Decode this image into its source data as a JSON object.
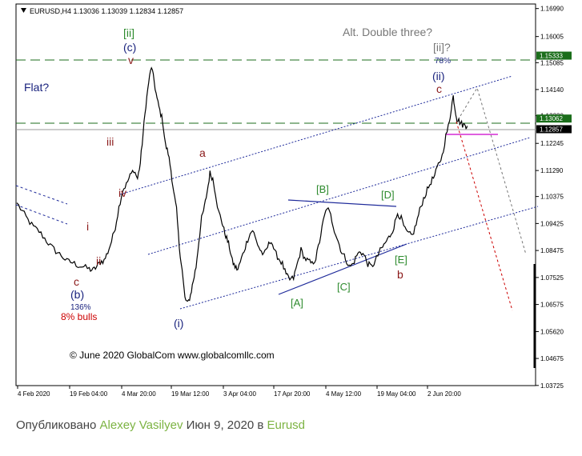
{
  "chart_data": {
    "type": "line",
    "symbol_header": "EURUSD,H4  1.13036 1.13039 1.12834 1.12857",
    "x_ticks": [
      "4 Feb 2020",
      "19 Feb 04:00",
      "4 Mar 20:00",
      "19 Mar 12:00",
      "3 Apr 04:00",
      "17 Apr 20:00",
      "4 May 12:00",
      "19 May 04:00",
      "2 Jun 20:00"
    ],
    "y_ticks": [
      "1.16990",
      "1.16005",
      "1.15085",
      "1.14140",
      "1.13220",
      "1.12245",
      "1.11290",
      "1.10375",
      "1.09425",
      "1.08475",
      "1.07525",
      "1.06575",
      "1.05620",
      "1.04675",
      "1.03725"
    ],
    "ylim": [
      1.0372,
      1.1715
    ],
    "price_labels": [
      {
        "text": "1.15333",
        "value": 1.15333
      },
      {
        "text": "1.13062",
        "value": 1.13062
      },
      {
        "text": "1.12857",
        "value": 1.12857
      }
    ],
    "series": [
      {
        "values": [
          [
            0,
            1.1015
          ],
          [
            6,
            1.0985
          ],
          [
            12,
            1.0955
          ],
          [
            18,
            1.093
          ],
          [
            24,
            1.0915
          ],
          [
            30,
            1.089
          ],
          [
            36,
            1.0865
          ],
          [
            42,
            1.0845
          ],
          [
            48,
            1.083
          ],
          [
            54,
            1.081
          ],
          [
            60,
            1.0805
          ],
          [
            66,
            1.0795
          ],
          [
            72,
            1.079
          ],
          [
            78,
            1.0782
          ],
          [
            82,
            1.0778
          ],
          [
            86,
            1.079
          ],
          [
            90,
            1.0808
          ],
          [
            94,
            1.0812
          ],
          [
            98,
            1.0842
          ],
          [
            102,
            1.088
          ],
          [
            106,
            1.093
          ],
          [
            110,
            1.1
          ],
          [
            114,
            1.106
          ],
          [
            118,
            1.108
          ],
          [
            122,
            1.111
          ],
          [
            126,
            1.1132
          ],
          [
            130,
            1.11
          ],
          [
            133,
            1.1155
          ],
          [
            136,
            1.126
          ],
          [
            139,
            1.136
          ],
          [
            142,
            1.144
          ],
          [
            145,
            1.1495
          ],
          [
            148,
            1.144
          ],
          [
            151,
            1.138
          ],
          [
            154,
            1.134
          ],
          [
            157,
            1.1305
          ],
          [
            160,
            1.122
          ],
          [
            163,
            1.119
          ],
          [
            166,
            1.113
          ],
          [
            169,
            1.105
          ],
          [
            172,
            1.099
          ],
          [
            175,
            1.086
          ],
          [
            178,
            1.078
          ],
          [
            181,
            1.068
          ],
          [
            184,
            1.066
          ],
          [
            187,
            1.069
          ],
          [
            190,
            1.074
          ],
          [
            193,
            1.079
          ],
          [
            196,
            1.088
          ],
          [
            199,
            1.096
          ],
          [
            202,
            1.1
          ],
          [
            205,
            1.1055
          ],
          [
            208,
            1.112
          ],
          [
            211,
            1.11
          ],
          [
            214,
            1.105
          ],
          [
            217,
            1.0985
          ],
          [
            220,
            1.096
          ],
          [
            223,
            1.092
          ],
          [
            226,
            1.089
          ],
          [
            229,
            1.086
          ],
          [
            232,
            1.081
          ],
          [
            235,
            1.079
          ],
          [
            238,
            1.078
          ],
          [
            242,
            1.082
          ],
          [
            246,
            1.086
          ],
          [
            250,
            1.09
          ],
          [
            254,
            1.092
          ],
          [
            258,
            1.088
          ],
          [
            262,
            1.085
          ],
          [
            266,
            1.083
          ],
          [
            270,
            1.086
          ],
          [
            274,
            1.0885
          ],
          [
            278,
            1.084
          ],
          [
            282,
            1.082
          ],
          [
            286,
            1.08
          ],
          [
            290,
            1.076
          ],
          [
            294,
            1.0745
          ],
          [
            298,
            1.075
          ],
          [
            302,
            1.08
          ],
          [
            306,
            1.085
          ],
          [
            310,
            1.082
          ],
          [
            314,
            1.081
          ],
          [
            318,
            1.08
          ],
          [
            322,
            1.082
          ],
          [
            326,
            1.088
          ],
          [
            330,
            1.095
          ],
          [
            334,
            1.1
          ],
          [
            338,
            1.097
          ],
          [
            342,
            1.092
          ],
          [
            346,
            1.088
          ],
          [
            350,
            1.084
          ],
          [
            354,
            1.082
          ],
          [
            358,
            1.079
          ],
          [
            362,
            1.08
          ],
          [
            366,
            1.083
          ],
          [
            370,
            1.0845
          ],
          [
            374,
            1.083
          ],
          [
            378,
            1.08
          ],
          [
            382,
            1.079
          ],
          [
            386,
            1.081
          ],
          [
            390,
            1.084
          ],
          [
            394,
            1.086
          ],
          [
            398,
            1.088
          ],
          [
            402,
            1.09
          ],
          [
            406,
            1.093
          ],
          [
            410,
            1.098
          ],
          [
            414,
            1.096
          ],
          [
            418,
            1.092
          ],
          [
            422,
            1.0905
          ],
          [
            426,
            1.09
          ],
          [
            430,
            1.094
          ],
          [
            434,
            1.099
          ],
          [
            438,
            1.103
          ],
          [
            442,
            1.106
          ],
          [
            446,
            1.109
          ],
          [
            450,
            1.111
          ],
          [
            454,
            1.115
          ],
          [
            458,
            1.118
          ],
          [
            462,
            1.125
          ],
          [
            466,
            1.13
          ],
          [
            468,
            1.1355
          ],
          [
            470,
            1.139
          ],
          [
            472,
            1.1345
          ],
          [
            474,
            1.131
          ],
          [
            477,
            1.13
          ],
          [
            480,
            1.129
          ],
          [
            483,
            1.1288
          ],
          [
            485,
            1.1286
          ]
        ]
      }
    ],
    "labels": {
      "wave_ii_bracket": "[ii]",
      "wave_c_paren": "(c)",
      "wave_v": "v",
      "alt_double_three": "Alt. Double three?",
      "wave_ii_q": "[ii]?",
      "pct_78": "78%",
      "wave_ii_paren": "(ii)",
      "wave_c_small_top": "c",
      "flat_q": "Flat?",
      "wave_iii": "iii",
      "wave_a": "a",
      "wave_iv": "iv",
      "wave_B": "[B]",
      "wave_D": "[D]",
      "wave_i": "i",
      "wave_ii_small": "ii",
      "wave_E": "[E]",
      "wave_b": "b",
      "wave_c_small_bottom": "c",
      "wave_C": "[C]",
      "wave_b_paren": "(b)",
      "pct_136": "136%",
      "bulls_8": "8% bulls",
      "wave_A": "[A]",
      "wave_i_paren": "(i)",
      "copyright": "© June 2020 GlobalCom www.globalcomllc.com"
    },
    "colors": {
      "price": "#000000",
      "green_label": "#2e8b2e",
      "navy_label": "#1a237e",
      "brown_label": "#8b1a1a",
      "dashed_level": "#1b6e1b",
      "channel": "#1e2a9a",
      "magenta": "#cc00cc",
      "red_dashed": "#cc0000",
      "gray_dashed": "#777777"
    }
  },
  "caption": {
    "prefix": "Опубликовано",
    "author": "Alexey Vasilyev",
    "date": "Июн 9, 2020 в",
    "symbol": "Eurusd"
  }
}
